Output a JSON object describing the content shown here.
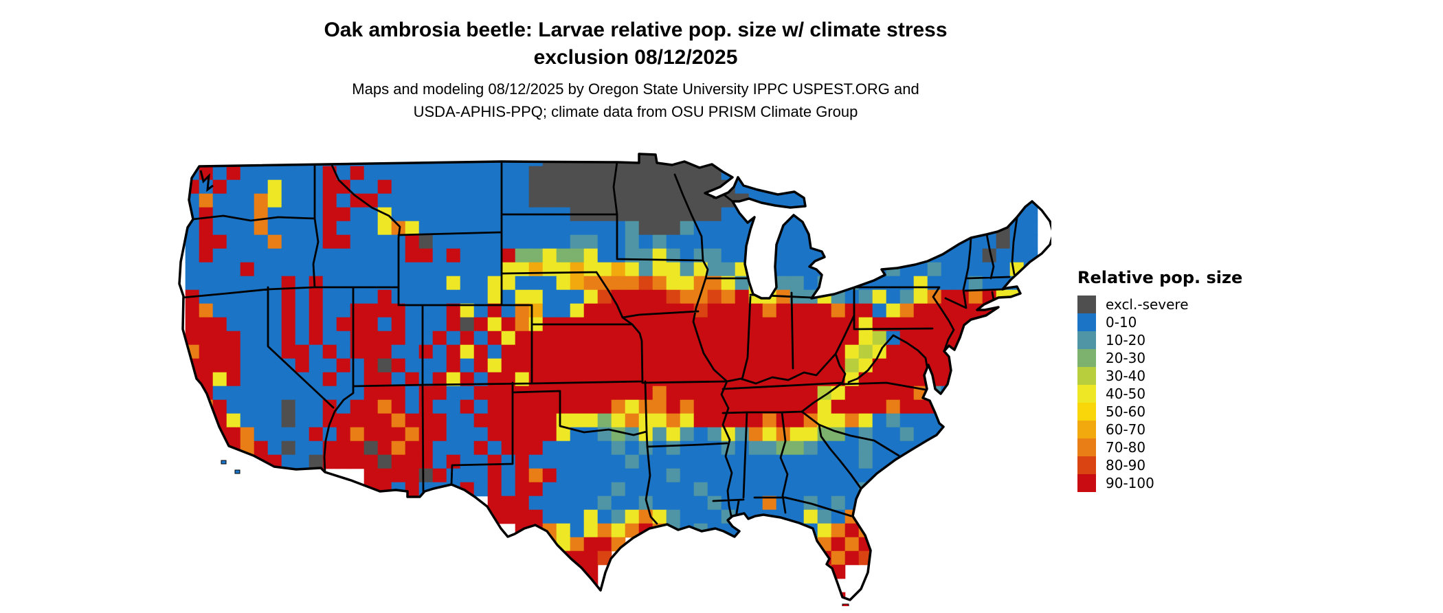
{
  "title": {
    "line1": "Oak ambrosia beetle: Larvae relative pop. size w/ climate stress",
    "line2": "exclusion 08/12/2025"
  },
  "subtitle": {
    "line1": "Maps and modeling 08/12/2025 by Oregon State University IPPC USPEST.ORG and",
    "line2": "USDA-APHIS-PPQ; climate data from OSU PRISM Climate Group"
  },
  "legend": {
    "title": "Relative pop. size",
    "items": [
      {
        "label": "excl.-severe",
        "color": "#4f4f4f",
        "class": "excl-severe"
      },
      {
        "label": "0-10",
        "color": "#1b74c6",
        "class": "0-10"
      },
      {
        "label": "10-20",
        "color": "#4f95a5",
        "class": "10-20"
      },
      {
        "label": "20-30",
        "color": "#7cb26d",
        "class": "20-30"
      },
      {
        "label": "30-40",
        "color": "#b8ce3d",
        "class": "30-40"
      },
      {
        "label": "40-50",
        "color": "#eee725",
        "class": "40-50"
      },
      {
        "label": "50-60",
        "color": "#f8d60a",
        "class": "50-60"
      },
      {
        "label": "60-70",
        "color": "#f2a90e",
        "class": "60-70"
      },
      {
        "label": "70-80",
        "color": "#e97d16",
        "class": "70-80"
      },
      {
        "label": "80-90",
        "color": "#da4413",
        "class": "80-90"
      },
      {
        "label": "90-100",
        "color": "#c90c11",
        "class": "90-100"
      }
    ]
  },
  "map": {
    "cell_size": 20,
    "palette": {
      "X": "#4f4f4f",
      "B": "#1b74c6",
      "T": "#4f95a5",
      "G": "#7cb26d",
      "g": "#b8ce3d",
      "Y": "#eee725",
      "d": "#f8d60a",
      "O": "#f2a90e",
      "o": "#e97d16",
      "R": "#da4413",
      "r": "#c90c11"
    },
    "grid_rows": [
      "..BrrBBBBBBBBBBBBBBBBBBBBBBBXXXXXXXXXXXXXBBBBBBBBBBBBBBBBBBBBBBB",
      "..BrBrBBBBBBrBrBBBBBBBBBBBBXXXXXXXXXXXXXXBBBBBBBBBBBBBBBBBBBBBBB",
      "..rBrBBBYBBBrrBBrBBBBBBBBBBXXXXXXXXXXXXXXXBBBBBBBBBBBBBBBBBBBBBB",
      "..BoBBBoYBBBrBrrBBBBBBBBBBBXXXXXXXXXXXXXXXXBBBBBBBBBBBBBBBBBBBBB",
      "..BrBBBoBBBBrrBBYBBBBBBBBBBBBBXXXXXXXXXXXBBBBBBBBBBBBBBBBBBBBBBB",
      "..BrBBBoBBBBrBBBYoYBBBBBBBBBBBBBBBTXXXTBBBBBBBBBBBBBBBBBBBBBBXBB",
      "..BrrBBBoBBBrrBBBBrXBBBBBBBBBBTTBBTBTBBBBBBBBBBBBBBBBBBBBBBBBXBB",
      "..BrBBBBBBBBBBBBBBrrBrBBBrGGYGGYBBTTYTBTTBBBBBBBBBBBBBBBBBBBXBBB",
      "..BBBBrBBBBBBBBBBBBBBBBBBYYOYYOYYOYTYYTYTTYTTBBBBBBBBTBBTBBBBBYBB",
      "..BBBBBBBrBrBBBBBBBBBYBBYYBBBYOooooRoYYooYTYTTTBTBTBBBBYBBBTBBBB",
      "..rBBBBBBrBrBBBBrBBBBBBBYBYYBBBYRrrrrRooRorYYoTTYTBTYBTYorrorYYBB",
      "..roBBBBBrBrBBrrrrBBBrYBrBoOBBYrrrrrrrrRrrrrorrrrorrBYorrrrrrrBBB",
      "..rrrBBBBrBrBrrrBrBBBrXrYroYrrrrrrrrrrrrrrrrrrrrrrrYrrrrrrrrrrrBB",
      "..rrrrBBBrBrBBrrrrBBrBrBrYrrrrrrrrrrrrrrrrrrrrrrrrrYgBrrrrrrrrrBB",
      "..orrrBBBrrBrBrrrBBrBrYrBrrrrrrrrrrrrrrrrrrrrrrrrrYgYrrrrrrrrrrBB",
      "..rrrrBBBBrBBrBrXrBBBrBrYrrrrrrrrrrrrrrrrrrrrrrrrrgYrrrrrrrrrrBBB",
      "..rrYrBBBBBBrBBrrBrBrYrBrrYrrrrrrrrrrrrrrrrrrrrrrrYrrrrrrrBBBBBBB",
      "..rrBBBBBBBBBBBrrrBrrBBrrrrrrrrrrrrrorrrrrrrrrrrgYrrrrroTBBBBBBBB",
      "..rorBBBBXBBrBrrorBrBBrBrrrrrrrrroYoororrrrrrrrrYrrrrorrrTBBBBBBB",
      "...rrYBBBXBBrrrrrorrrBBrrrrrrYYYGYoYYoYrrrrrorroYYoYBTBBBBBBBBBBB",
      "....rroBBBBrBrorrrorrBBBrrrrrYBBTGTYTYTBTYToYoYYGGBTBBTBBBBBBBBBB",
      ".....rorBXBBrrrXrorrBBBrBrrrBBBBBTBTBTBBBTBTTGGTBBBTBBBBBBBBBBBBB",
      "......rrrBBXrrrrXrrrBrBBrBrBBBBBBBTBBBBBBBBBBBBBBBBTBBBBBBBBBBBBB",
      "...............rrrrXrBBBrBrorBBBBBBBBTBBBBBBBBBBBBBBBBBBBBBBBBBBB",
      "...............rrBrBBBrBrBrrBBBBBTBBBBBTBBBBBBBBBBBTBBBBBBBBBBBBB",
      "........................rrrBBBBBTBBTBBBBTBBBoBBTBTBoBBBBBBBBBBBBB",
      "........................rrrrBBBYBTYoYTBBBTBBBBBYTBorBBBBBBBB.....",
      ".........................,rroYBYoYoroTBTBBBBBBBBYoroBBB..........",
      "..........................rroYorro..............ororr............",
      "...........................rrrrrR...............rorR.............",
      "............................rrrr..............rror...............",
      "..............................rr..............rrr................",
      "...............................r...............rYr..............."
    ]
  },
  "geo_labels": {
    "region": "Contiguous United States",
    "water_features": "Great Lakes shown white"
  }
}
